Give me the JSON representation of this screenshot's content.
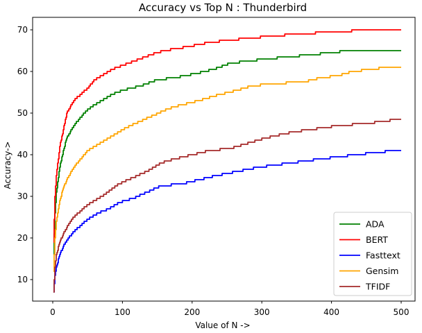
{
  "title": "Accuracy vs Top N : Thunderbird",
  "chart_data": {
    "type": "line",
    "title": "Accuracy vs Top N : Thunderbird",
    "xlabel": "Value of N ->",
    "ylabel": "Accuracy->",
    "xticks": [
      0,
      100,
      200,
      300,
      400,
      500
    ],
    "yticks": [
      10,
      20,
      30,
      40,
      50,
      60,
      70
    ],
    "xlim": [
      -32,
      520
    ],
    "ylim": [
      4.8,
      72.8
    ],
    "grid": false,
    "line_style": "staircase",
    "legend_position": "lower right",
    "series": [
      {
        "name": "ADA",
        "color": "#008000",
        "points": [
          [
            1,
            16
          ],
          [
            3,
            26
          ],
          [
            5,
            31
          ],
          [
            10,
            37
          ],
          [
            15,
            41
          ],
          [
            20,
            44
          ],
          [
            30,
            47
          ],
          [
            45,
            50
          ],
          [
            55,
            51.5
          ],
          [
            70,
            53
          ],
          [
            85,
            54.5
          ],
          [
            100,
            55.5
          ],
          [
            125,
            56.5
          ],
          [
            150,
            58
          ],
          [
            175,
            58.5
          ],
          [
            205,
            59.5
          ],
          [
            230,
            60.5
          ],
          [
            255,
            62
          ],
          [
            305,
            63
          ],
          [
            370,
            64
          ],
          [
            425,
            65
          ],
          [
            500,
            65
          ]
        ]
      },
      {
        "name": "BERT",
        "color": "#ff0000",
        "points": [
          [
            1,
            19
          ],
          [
            3,
            30
          ],
          [
            5,
            35
          ],
          [
            10,
            42
          ],
          [
            15,
            46
          ],
          [
            20,
            50
          ],
          [
            30,
            53
          ],
          [
            40,
            54.5
          ],
          [
            50,
            56
          ],
          [
            60,
            58
          ],
          [
            70,
            59
          ],
          [
            85,
            60.5
          ],
          [
            100,
            61.5
          ],
          [
            125,
            63
          ],
          [
            140,
            64
          ],
          [
            160,
            65
          ],
          [
            195,
            66
          ],
          [
            225,
            67
          ],
          [
            280,
            68
          ],
          [
            350,
            69
          ],
          [
            455,
            70
          ],
          [
            500,
            70
          ]
        ]
      },
      {
        "name": "Fasttext",
        "color": "#0000ff",
        "points": [
          [
            1,
            7
          ],
          [
            3,
            11
          ],
          [
            5,
            13
          ],
          [
            10,
            16
          ],
          [
            15,
            18
          ],
          [
            20,
            19.5
          ],
          [
            30,
            21.5
          ],
          [
            40,
            23
          ],
          [
            50,
            24.5
          ],
          [
            65,
            26
          ],
          [
            80,
            27
          ],
          [
            95,
            28.5
          ],
          [
            115,
            29.5
          ],
          [
            135,
            31
          ],
          [
            155,
            32.5
          ],
          [
            185,
            33
          ],
          [
            210,
            34
          ],
          [
            235,
            35
          ],
          [
            265,
            36
          ],
          [
            295,
            37
          ],
          [
            340,
            38
          ],
          [
            385,
            39
          ],
          [
            435,
            40
          ],
          [
            490,
            41
          ],
          [
            500,
            41
          ]
        ]
      },
      {
        "name": "Gensim",
        "color": "#ffa500",
        "points": [
          [
            1,
            12
          ],
          [
            3,
            20
          ],
          [
            5,
            24
          ],
          [
            10,
            29
          ],
          [
            15,
            32
          ],
          [
            20,
            34
          ],
          [
            30,
            37
          ],
          [
            40,
            39
          ],
          [
            50,
            41
          ],
          [
            60,
            42
          ],
          [
            75,
            43.5
          ],
          [
            90,
            45
          ],
          [
            105,
            46.5
          ],
          [
            125,
            48
          ],
          [
            145,
            49.5
          ],
          [
            165,
            51
          ],
          [
            185,
            52
          ],
          [
            210,
            53
          ],
          [
            240,
            54.5
          ],
          [
            265,
            55.5
          ],
          [
            285,
            56.5
          ],
          [
            310,
            57
          ],
          [
            360,
            57.5
          ],
          [
            385,
            58.5
          ],
          [
            410,
            59
          ],
          [
            430,
            60
          ],
          [
            480,
            61
          ],
          [
            500,
            61
          ]
        ]
      },
      {
        "name": "TFIDF",
        "color": "#a52a2a",
        "points": [
          [
            1,
            7
          ],
          [
            3,
            13
          ],
          [
            5,
            16
          ],
          [
            10,
            19
          ],
          [
            15,
            21
          ],
          [
            20,
            22.5
          ],
          [
            30,
            25
          ],
          [
            40,
            26.5
          ],
          [
            50,
            28
          ],
          [
            60,
            29
          ],
          [
            75,
            30.5
          ],
          [
            95,
            33
          ],
          [
            115,
            34.5
          ],
          [
            135,
            36
          ],
          [
            155,
            38
          ],
          [
            175,
            39
          ],
          [
            200,
            40
          ],
          [
            225,
            41
          ],
          [
            255,
            41.5
          ],
          [
            275,
            42.5
          ],
          [
            305,
            44
          ],
          [
            345,
            45.5
          ],
          [
            390,
            46.5
          ],
          [
            410,
            47
          ],
          [
            450,
            47.5
          ],
          [
            495,
            48.5
          ],
          [
            500,
            48.5
          ]
        ]
      }
    ]
  }
}
